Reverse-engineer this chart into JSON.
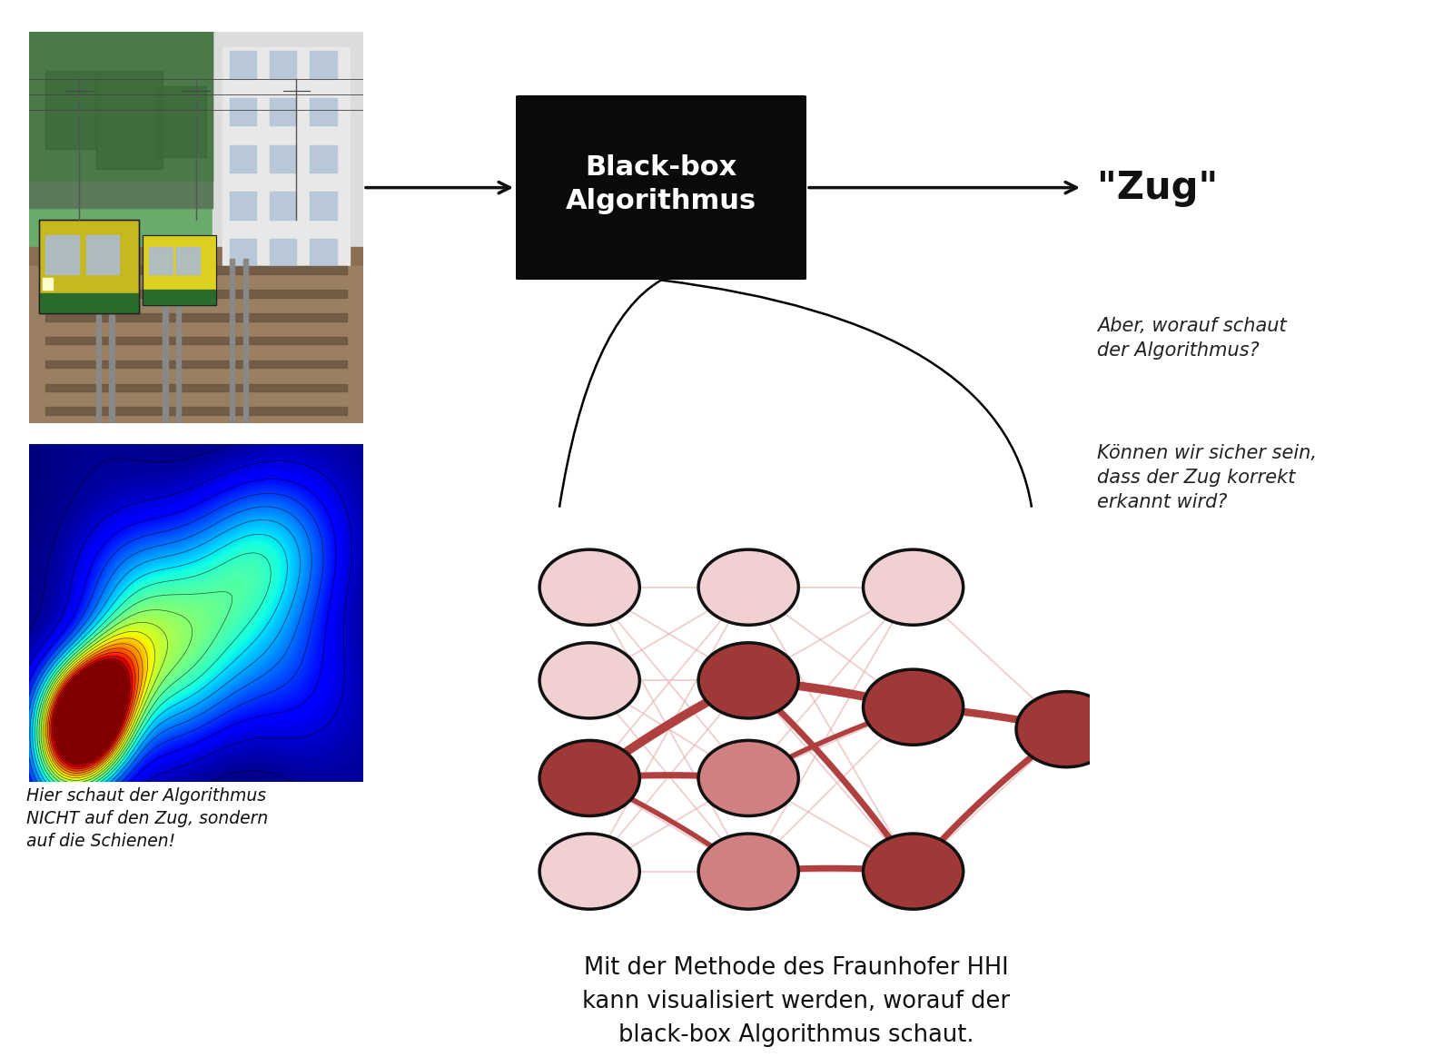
{
  "bg_color": "#ffffff",
  "black_box_text": "Black-box\nAlgorithmus",
  "zug_text": "\"Zug\"",
  "question1": "Aber, worauf schaut\nder Algorithmus?",
  "question2": "Können wir sicher sein,\ndass der Zug korrekt\nerkannt wird?",
  "bottom_text": "Mit der Methode des Fraunhofer HHI\nkann visualisiert werden, worauf der\nblack-box Algorithmus schaut.",
  "caption_text": "Hier schaut der Algorithmus\nNICHT auf den Zug, sondern\nauf die Schienen!",
  "node_color_light": "#f0d0d0",
  "node_color_medium": "#d08080",
  "node_color_dark": "#a03838",
  "node_outline": "#111111",
  "connection_color_strong": "#b04040",
  "connection_color_weak": "#e8b8b8",
  "box_color": "#0a0a0a",
  "box_text_color": "#ffffff",
  "arrow_color": "#111111",
  "fig_width": 16.0,
  "fig_height": 11.64
}
